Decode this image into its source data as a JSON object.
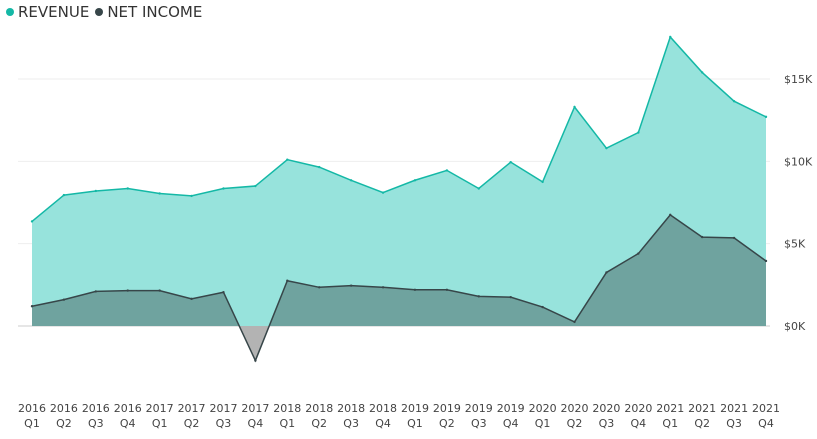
{
  "legend": {
    "items": [
      {
        "label": "REVENUE",
        "color": "#14b8a6"
      },
      {
        "label": "NET INCOME",
        "color": "#374649"
      }
    ]
  },
  "colors": {
    "revenue_fill": "#97e3dc",
    "revenue_line": "#14b8a6",
    "net_income_fill": "#6fa39f",
    "net_income_negative_fill": "#b3b3b3",
    "net_income_line": "#374649",
    "gridline": "#eeeeee",
    "zero_line": "#cccccc"
  },
  "chart_data": {
    "type": "area",
    "categories": [
      [
        "2016",
        "Q1"
      ],
      [
        "2016",
        "Q2"
      ],
      [
        "2016",
        "Q3"
      ],
      [
        "2016",
        "Q4"
      ],
      [
        "2017",
        "Q1"
      ],
      [
        "2017",
        "Q2"
      ],
      [
        "2017",
        "Q3"
      ],
      [
        "2017",
        "Q4"
      ],
      [
        "2018",
        "Q1"
      ],
      [
        "2018",
        "Q2"
      ],
      [
        "2018",
        "Q3"
      ],
      [
        "2018",
        "Q4"
      ],
      [
        "2019",
        "Q1"
      ],
      [
        "2019",
        "Q2"
      ],
      [
        "2019",
        "Q3"
      ],
      [
        "2019",
        "Q4"
      ],
      [
        "2020",
        "Q1"
      ],
      [
        "2020",
        "Q2"
      ],
      [
        "2020",
        "Q3"
      ],
      [
        "2020",
        "Q4"
      ],
      [
        "2021",
        "Q1"
      ],
      [
        "2021",
        "Q2"
      ],
      [
        "2021",
        "Q3"
      ],
      [
        "2021",
        "Q4"
      ]
    ],
    "series": [
      {
        "name": "REVENUE",
        "values": [
          6350,
          7950,
          8200,
          8350,
          8050,
          7900,
          8350,
          8500,
          10100,
          9650,
          8850,
          8100,
          8850,
          9450,
          8350,
          9950,
          8750,
          13300,
          10800,
          11750,
          17550,
          15400,
          13650,
          12700
        ]
      },
      {
        "name": "NET INCOME",
        "values": [
          1200,
          1600,
          2100,
          2150,
          2150,
          1650,
          2050,
          -2100,
          2750,
          2350,
          2450,
          2350,
          2200,
          2200,
          1800,
          1750,
          1150,
          250,
          3250,
          4400,
          6750,
          5400,
          5350,
          3950
        ]
      }
    ],
    "yticks": [
      {
        "value": 0,
        "label": "$0K"
      },
      {
        "value": 5000,
        "label": "$5K"
      },
      {
        "value": 10000,
        "label": "$10K"
      },
      {
        "value": 15000,
        "label": "$15K"
      }
    ],
    "ylim": [
      -2800,
      18600
    ],
    "grid": true,
    "legend_position": "top-left"
  }
}
